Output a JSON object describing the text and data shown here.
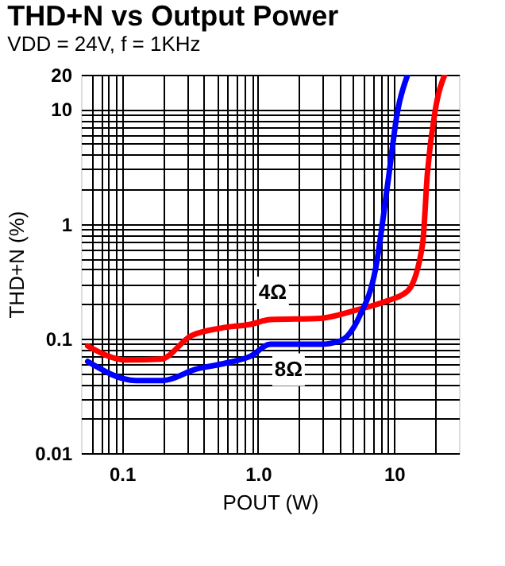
{
  "chart_data": {
    "type": "line",
    "title": "THD+N vs Output Power",
    "subtitle": "VDD = 24V, f = 1KHz",
    "xlabel": "POUT (W)",
    "ylabel": "THD+N (%)",
    "log": "xy",
    "grid": true,
    "legend": false,
    "xlim": [
      0.05,
      30
    ],
    "ylim": [
      0.01,
      20
    ],
    "xticks": [
      {
        "value": 0.06,
        "label": null
      },
      {
        "value": 0.07,
        "label": null
      },
      {
        "value": 0.08,
        "label": null
      },
      {
        "value": 0.09,
        "label": null
      },
      0.1,
      {
        "value": 0.2,
        "label": null
      },
      {
        "value": 0.3,
        "label": null
      },
      {
        "value": 0.4,
        "label": null
      },
      {
        "value": 0.5,
        "label": null
      },
      {
        "value": 0.6,
        "label": null
      },
      {
        "value": 0.7,
        "label": null
      },
      {
        "value": 0.8,
        "label": null
      },
      {
        "value": 0.9,
        "label": null
      },
      {
        "value": 1,
        "label": "1.0"
      },
      {
        "value": 2,
        "label": null
      },
      {
        "value": 3,
        "label": null
      },
      {
        "value": 4,
        "label": null
      },
      {
        "value": 5,
        "label": null
      },
      {
        "value": 6,
        "label": null
      },
      {
        "value": 7,
        "label": null
      },
      {
        "value": 8,
        "label": null
      },
      {
        "value": 9,
        "label": null
      },
      10,
      {
        "value": 20,
        "label": null
      }
    ],
    "yticks": [
      0.01,
      {
        "value": 0.02,
        "label": null
      },
      {
        "value": 0.03,
        "label": null
      },
      {
        "value": 0.04,
        "label": null
      },
      {
        "value": 0.05,
        "label": null
      },
      {
        "value": 0.06,
        "label": null
      },
      {
        "value": 0.07,
        "label": null
      },
      {
        "value": 0.08,
        "label": null
      },
      {
        "value": 0.09,
        "label": null
      },
      0.1,
      {
        "value": 0.2,
        "label": null
      },
      {
        "value": 0.3,
        "label": null
      },
      {
        "value": 0.4,
        "label": null
      },
      {
        "value": 0.5,
        "label": null
      },
      {
        "value": 0.6,
        "label": null
      },
      {
        "value": 0.7,
        "label": null
      },
      {
        "value": 0.8,
        "label": null
      },
      {
        "value": 0.9,
        "label": null
      },
      1,
      {
        "value": 2,
        "label": null
      },
      {
        "value": 3,
        "label": null
      },
      {
        "value": 4,
        "label": null
      },
      {
        "value": 5,
        "label": null
      },
      {
        "value": 6,
        "label": null
      },
      {
        "value": 7,
        "label": null
      },
      {
        "value": 8,
        "label": null
      },
      {
        "value": 9,
        "label": null
      },
      10,
      20
    ],
    "series": [
      {
        "name": "4Ω",
        "color": "#ff0000",
        "x": [
          0.056,
          0.107,
          0.193,
          0.32,
          0.53,
          0.88,
          1.23,
          2.87,
          5.2,
          8.6,
          12.6,
          16.2,
          17.6,
          20,
          23.6
        ],
        "values": [
          0.086,
          0.065,
          0.066,
          0.105,
          0.123,
          0.133,
          0.146,
          0.15,
          0.176,
          0.21,
          0.26,
          0.66,
          2.78,
          9.5,
          20
        ]
      },
      {
        "name": "8Ω",
        "color": "#0000ff",
        "x": [
          0.056,
          0.127,
          0.2,
          0.35,
          0.58,
          0.88,
          1.23,
          2.87,
          4.0,
          5.6,
          7.3,
          9.0,
          10.6,
          12.6
        ],
        "values": [
          0.063,
          0.043,
          0.043,
          0.054,
          0.061,
          0.07,
          0.089,
          0.089,
          0.095,
          0.158,
          0.4,
          2.27,
          9.5,
          20
        ]
      }
    ]
  }
}
